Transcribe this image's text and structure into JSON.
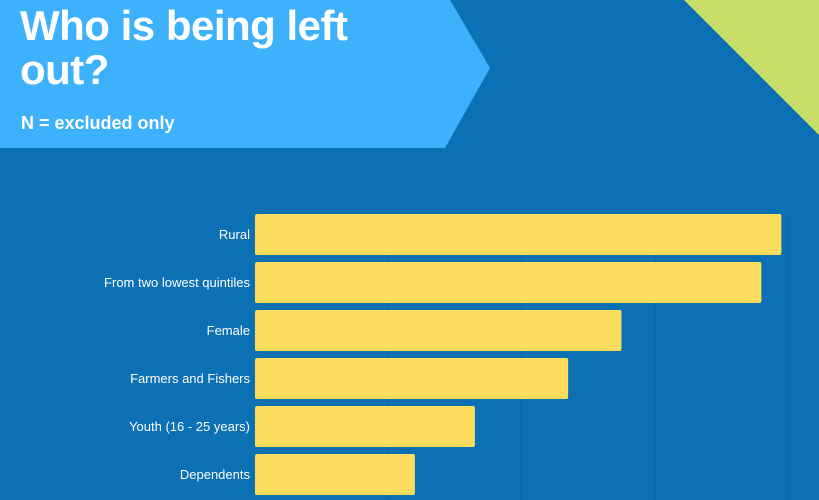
{
  "header": {
    "title": "Who is being left out?",
    "subtitle": "N = excluded only"
  },
  "colors": {
    "background": "#0b70b4",
    "banner": "#3eb1fd",
    "corner_accent": "#c6e06a",
    "bar": "#fedd5e",
    "gridline": "#0a5f9c",
    "label_text": "#ffffff"
  },
  "chart_data": {
    "type": "bar",
    "orientation": "horizontal",
    "categories": [
      "Rural",
      "From two lowest quintiles",
      "Female",
      "Farmers and Fishers",
      "Youth (16 - 25 years)",
      "Dependents"
    ],
    "values": [
      79,
      76,
      55,
      47,
      33,
      24
    ],
    "xlim": [
      0,
      80
    ],
    "grid": true,
    "title": "",
    "xlabel": "",
    "ylabel": ""
  }
}
